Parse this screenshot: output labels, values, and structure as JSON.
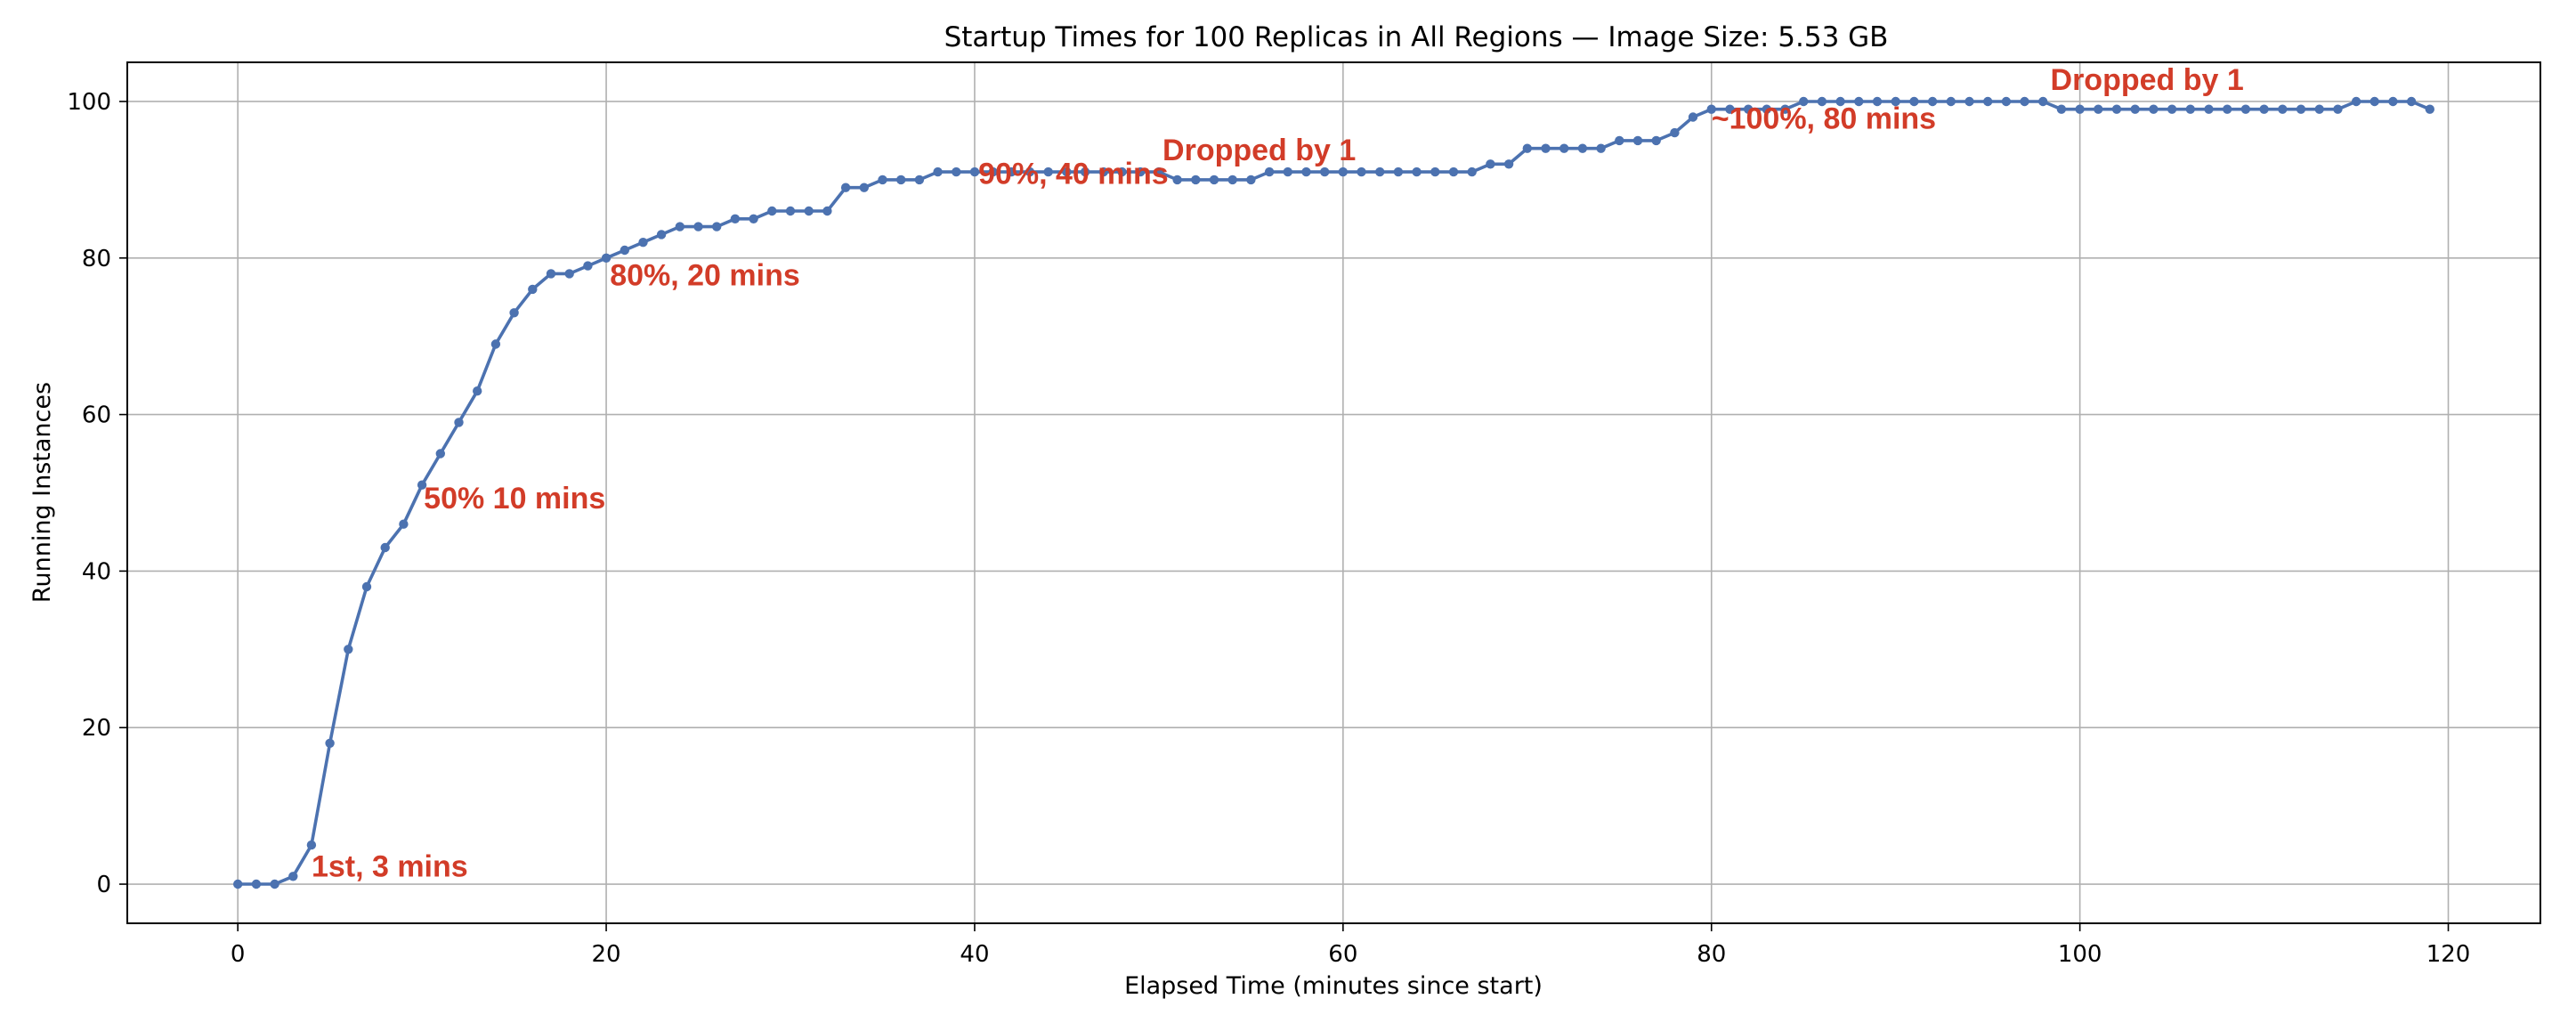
{
  "chart_data": {
    "type": "line",
    "title": "Startup Times for 100 Replicas in All Regions — Image Size: 5.53 GB",
    "xlabel": "Elapsed Time (minutes since start)",
    "ylabel": "Running Instances",
    "xlim": [
      -6,
      125
    ],
    "ylim": [
      -5,
      105
    ],
    "xticks": [
      0,
      20,
      40,
      60,
      80,
      100,
      120
    ],
    "yticks": [
      0,
      20,
      40,
      60,
      80,
      100
    ],
    "grid": true,
    "series_color": "#4c72b0",
    "annotation_color": "#d23c28",
    "series": [
      {
        "x": [
          0,
          1,
          2,
          3,
          4,
          5,
          6,
          7,
          8,
          9,
          10,
          11,
          12,
          13,
          14,
          15,
          16,
          17,
          18,
          19,
          20,
          21,
          22,
          23,
          24,
          25,
          26,
          27,
          28,
          29,
          30,
          31,
          32,
          33,
          34,
          35,
          36,
          37,
          38,
          39,
          40,
          41,
          42,
          43,
          44,
          45,
          46,
          47,
          48,
          49,
          50,
          51,
          52,
          53,
          54,
          55,
          56,
          57,
          58,
          59,
          60,
          61,
          62,
          63,
          64,
          65,
          66,
          67,
          68,
          69,
          70,
          71,
          72,
          73,
          74,
          75,
          76,
          77,
          78,
          79,
          80,
          81,
          82,
          83,
          84,
          85,
          86,
          87,
          88,
          89,
          90,
          91,
          92,
          93,
          94,
          95,
          96,
          97,
          98,
          99,
          100,
          101,
          102,
          103,
          104,
          105,
          106,
          107,
          108,
          109,
          110,
          111,
          112,
          113,
          114,
          115,
          116,
          117,
          118,
          119
        ],
        "values": [
          0,
          0,
          0,
          1,
          5,
          18,
          30,
          38,
          43,
          46,
          51,
          55,
          59,
          63,
          69,
          73,
          76,
          78,
          78,
          79,
          80,
          81,
          82,
          83,
          84,
          84,
          84,
          85,
          85,
          86,
          86,
          86,
          86,
          89,
          89,
          90,
          90,
          90,
          91,
          91,
          91,
          91,
          91,
          91,
          91,
          91,
          91,
          91,
          91,
          91,
          91,
          90,
          90,
          90,
          90,
          90,
          91,
          91,
          91,
          91,
          91,
          91,
          91,
          91,
          91,
          91,
          91,
          91,
          92,
          92,
          94,
          94,
          94,
          94,
          94,
          95,
          95,
          95,
          96,
          98,
          99,
          99,
          99,
          99,
          99,
          100,
          100,
          100,
          100,
          100,
          100,
          100,
          100,
          100,
          100,
          100,
          100,
          100,
          100,
          99,
          99,
          99,
          99,
          99,
          99,
          99,
          99,
          99,
          99,
          99,
          99,
          99,
          99,
          99,
          99,
          100,
          100,
          100,
          100,
          99
        ]
      }
    ],
    "annotations": [
      {
        "text": "1st, 3 mins",
        "x": 4,
        "y": 1
      },
      {
        "text": "50% 10 mins",
        "x": 10.1,
        "y": 48
      },
      {
        "text": "80%, 20 mins",
        "x": 20.2,
        "y": 76.5
      },
      {
        "text": "90%, 40 mins",
        "x": 40.2,
        "y": 89.5
      },
      {
        "text": "Dropped by 1",
        "x": 50.2,
        "y": 92.5
      },
      {
        "text": "~100%, 80 mins",
        "x": 80,
        "y": 96.5
      },
      {
        "text": "Dropped by 1",
        "x": 98.4,
        "y": 101.5
      }
    ]
  }
}
